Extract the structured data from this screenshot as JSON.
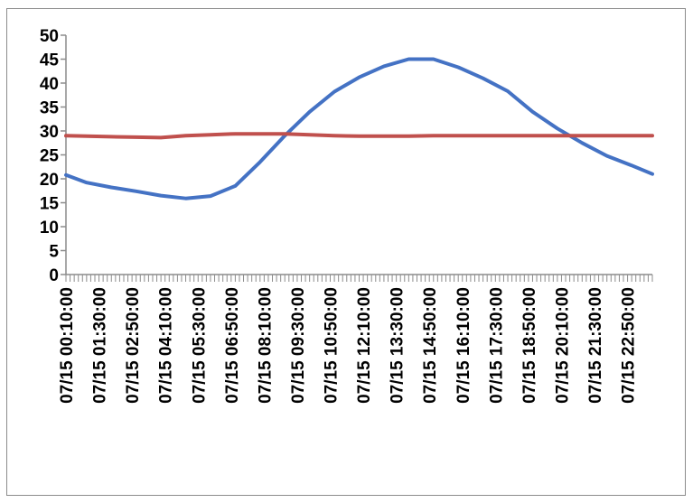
{
  "chart_data": {
    "type": "line",
    "title": "",
    "xlabel": "",
    "ylabel": "",
    "ylim": [
      0,
      50
    ],
    "yticks": [
      0,
      5,
      10,
      15,
      20,
      25,
      30,
      35,
      40,
      45,
      50
    ],
    "x": [
      "07/15 00:10:00",
      "07/15 01:00:00",
      "07/15 02:00:00",
      "07/15 03:00:00",
      "07/15 04:00:00",
      "07/15 05:00:00",
      "07/15 06:00:00",
      "07/15 07:00:00",
      "07/15 08:00:00",
      "07/15 09:00:00",
      "07/15 10:00:00",
      "07/15 11:00:00",
      "07/15 12:00:00",
      "07/15 13:00:00",
      "07/15 14:00:00",
      "07/15 15:00:00",
      "07/15 16:00:00",
      "07/15 17:00:00",
      "07/15 18:00:00",
      "07/15 19:00:00",
      "07/15 20:00:00",
      "07/15 21:00:00",
      "07/15 22:00:00",
      "07/15 23:00:00",
      "07/15 23:50:00"
    ],
    "x_tick_labels": [
      "07/15  00:10:00",
      "07/15  01:30:00",
      "07/15  02:50:00",
      "07/15  04:10:00",
      "07/15  05:30:00",
      "07/15  06:50:00",
      "07/15  08:10:00",
      "07/15  09:30:00",
      "07/15  10:50:00",
      "07/15  12:10:00",
      "07/15  13:30:00",
      "07/15  14:50:00",
      "07/15  16:10:00",
      "07/15  17:30:00",
      "07/15  18:50:00",
      "07/15  20:10:00",
      "07/15  21:30:00",
      "07/15  22:50:00"
    ],
    "x_tick_times": [
      "00:10",
      "01:30",
      "02:50",
      "04:10",
      "05:30",
      "06:50",
      "08:10",
      "09:30",
      "10:50",
      "12:10",
      "13:30",
      "14:50",
      "16:10",
      "17:30",
      "18:50",
      "20:10",
      "21:30",
      "22:50"
    ],
    "x_times": [
      "00:10",
      "01:00",
      "02:00",
      "03:00",
      "04:00",
      "05:00",
      "06:00",
      "07:00",
      "08:00",
      "09:00",
      "10:00",
      "11:00",
      "12:00",
      "13:00",
      "14:00",
      "15:00",
      "16:00",
      "17:00",
      "18:00",
      "19:00",
      "20:00",
      "21:00",
      "22:00",
      "23:00",
      "23:50"
    ],
    "series": [
      {
        "color": "#4472c4",
        "values": [
          20.8,
          19.2,
          18.2,
          17.4,
          16.5,
          15.9,
          16.4,
          18.5,
          23.5,
          29.0,
          34.0,
          38.2,
          41.2,
          43.5,
          45.0,
          45.0,
          43.3,
          41.0,
          38.3,
          34.0,
          30.5,
          27.5,
          24.8,
          22.8,
          21.0
        ]
      },
      {
        "color": "#c0504d",
        "values": [
          29.0,
          28.9,
          28.8,
          28.7,
          28.6,
          29.0,
          29.2,
          29.4,
          29.4,
          29.4,
          29.2,
          29.0,
          28.9,
          28.9,
          28.9,
          29.0,
          29.0,
          29.0,
          29.0,
          29.0,
          29.0,
          29.0,
          29.0,
          29.0,
          29.0
        ]
      }
    ],
    "grid": false,
    "legend": "none"
  }
}
